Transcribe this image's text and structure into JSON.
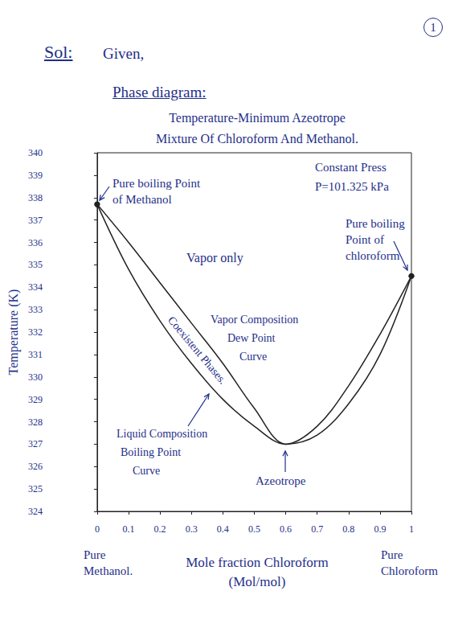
{
  "page": {
    "number": "1",
    "heading": "Sol:",
    "given": "Given,",
    "subheading": "Phase diagram:"
  },
  "chart_data": {
    "type": "line",
    "title": [
      "Temperature-Minimum Azeotrope",
      "Mixture Of Chloroform And Methanol."
    ],
    "x_label": "Mole fraction Chloroform (Mol/mol)",
    "y_label": "Temperature (K)",
    "x": [
      0,
      0.1,
      0.2,
      0.3,
      0.4,
      0.5,
      0.6,
      0.7,
      0.8,
      0.9,
      1
    ],
    "series": [
      {
        "color": "#222222",
        "values": [
          337.7,
          336.0,
          334.2,
          332.4,
          330.6,
          328.6,
          327.0,
          327.8,
          329.6,
          331.9,
          334.5
        ]
      },
      {
        "color": "#222222",
        "values": [
          337.7,
          334.8,
          332.5,
          330.6,
          329.0,
          327.8,
          327.0,
          327.4,
          328.8,
          331.0,
          334.5
        ]
      }
    ],
    "xlim": [
      0,
      1
    ],
    "xticks": [
      0,
      0.1,
      0.2,
      0.3,
      0.4,
      0.5,
      0.6,
      0.7,
      0.8,
      0.9,
      1
    ],
    "ylim": [
      324,
      340
    ],
    "yticks": [
      324,
      325,
      326,
      327,
      328,
      329,
      330,
      331,
      332,
      333,
      334,
      335,
      336,
      337,
      338,
      339,
      340
    ],
    "grid": false,
    "marker": "circle",
    "line_style": "solid",
    "annotations": [
      {
        "lines": [
          "Pure boiling Point",
          "of Methanol"
        ]
      },
      {
        "lines": [
          "Vapor only"
        ]
      },
      {
        "lines": [
          "Coexistent Phases."
        ]
      },
      {
        "lines": [
          "Constant Press",
          "P=101.325 kPa"
        ]
      },
      {
        "lines": [
          "Pure boiling",
          "Point of",
          "chloroform"
        ]
      },
      {
        "lines": [
          "Azeotrope"
        ]
      },
      {
        "lines": [
          "Vapor Composition",
          "Dew Point",
          "Curve"
        ]
      },
      {
        "lines": [
          "Liquid Composition",
          "Boiling Point",
          "Curve"
        ]
      },
      {
        "lines": [
          "Pure",
          "Methanol."
        ]
      },
      {
        "lines": [
          "Pure",
          "Chloroform"
        ]
      }
    ]
  }
}
